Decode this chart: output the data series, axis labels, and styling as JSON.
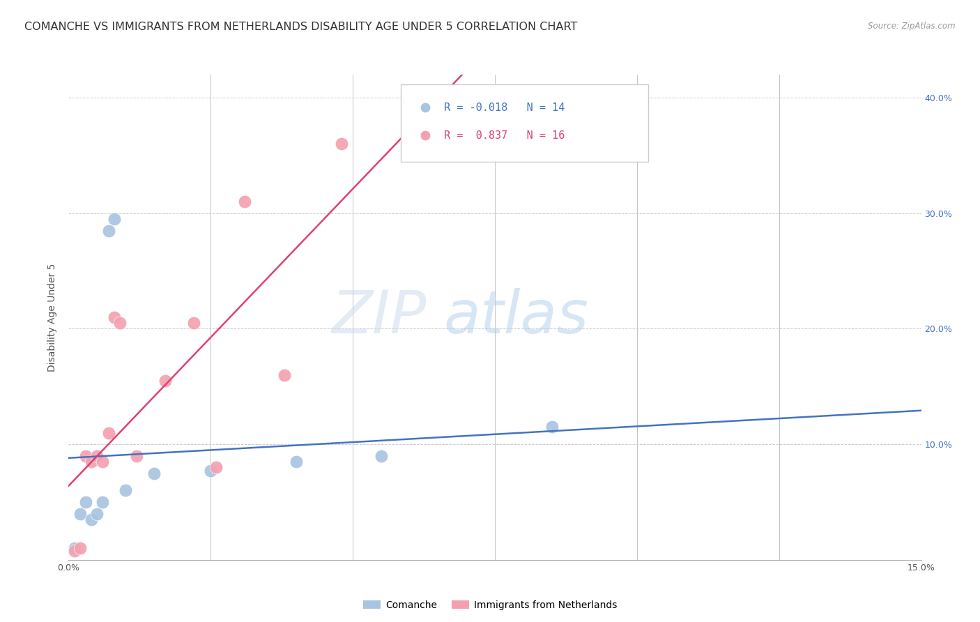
{
  "title": "COMANCHE VS IMMIGRANTS FROM NETHERLANDS DISABILITY AGE UNDER 5 CORRELATION CHART",
  "source": "Source: ZipAtlas.com",
  "ylabel": "Disability Age Under 5",
  "watermark_zip": "ZIP",
  "watermark_atlas": "atlas",
  "xlim": [
    0.0,
    0.15
  ],
  "ylim": [
    0.0,
    0.42
  ],
  "comanche_x": [
    0.001,
    0.002,
    0.003,
    0.004,
    0.005,
    0.006,
    0.007,
    0.008,
    0.01,
    0.015,
    0.025,
    0.04,
    0.055,
    0.085
  ],
  "comanche_y": [
    0.01,
    0.04,
    0.05,
    0.035,
    0.04,
    0.05,
    0.285,
    0.295,
    0.06,
    0.075,
    0.077,
    0.085,
    0.09,
    0.115
  ],
  "netherlands_x": [
    0.001,
    0.002,
    0.003,
    0.004,
    0.005,
    0.006,
    0.007,
    0.008,
    0.009,
    0.012,
    0.017,
    0.022,
    0.026,
    0.031,
    0.038,
    0.048
  ],
  "netherlands_y": [
    0.008,
    0.01,
    0.09,
    0.085,
    0.09,
    0.085,
    0.11,
    0.21,
    0.205,
    0.09,
    0.155,
    0.205,
    0.08,
    0.31,
    0.16,
    0.36
  ],
  "comanche_color": "#a8c4e0",
  "netherlands_color": "#f4a0b0",
  "comanche_line_color": "#4472c4",
  "netherlands_line_color": "#e04070",
  "comanche_r": -0.018,
  "comanche_n": 14,
  "netherlands_r": 0.837,
  "netherlands_n": 16,
  "legend_comanche_label": "Comanche",
  "legend_netherlands_label": "Immigrants from Netherlands",
  "grid_color": "#cccccc",
  "background_color": "#ffffff",
  "title_fontsize": 11.5,
  "axis_fontsize": 10,
  "tick_fontsize": 9,
  "legend_fontsize": 11
}
